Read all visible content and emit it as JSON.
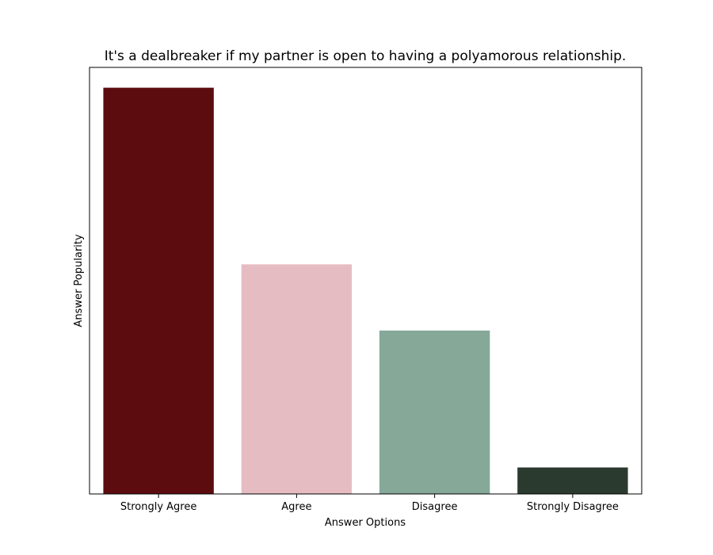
{
  "chart_data": {
    "type": "bar",
    "title": "It's a dealbreaker if my partner is open to having a polyamorous relationship.",
    "xlabel": "Answer Options",
    "ylabel": "Answer Popularity",
    "categories": [
      "Strongly Agree",
      "Agree",
      "Disagree",
      "Strongly Disagree"
    ],
    "values": [
      0.46,
      0.26,
      0.185,
      0.03
    ],
    "colors": [
      "#5c0c0e",
      "#e6bcc3",
      "#85a899",
      "#2b3a2e"
    ],
    "ylim": [
      0,
      0.483
    ],
    "y_ticks_shown": false,
    "grid": false,
    "legend": false
  }
}
